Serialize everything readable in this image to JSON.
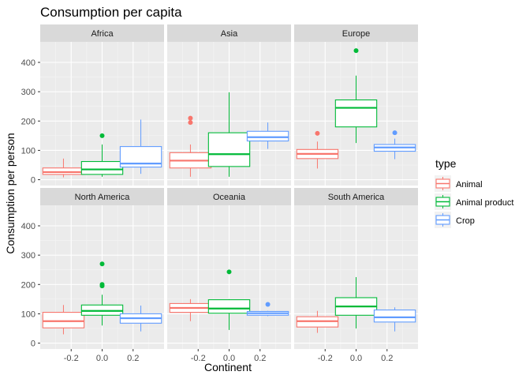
{
  "chart_data": {
    "type": "boxplot",
    "title": "Consumption per capita",
    "xlabel": "Continent",
    "ylabel": "Consumption per person",
    "xlim": [
      -0.4,
      0.4
    ],
    "ylim": [
      -20,
      470
    ],
    "x_ticks": [
      -0.2,
      0.0,
      0.2
    ],
    "x_tick_labels": [
      "-0.2",
      "0.0",
      "0.2"
    ],
    "y_ticks": [
      0,
      100,
      200,
      300,
      400
    ],
    "y_tick_labels": [
      "0",
      "100",
      "200",
      "300",
      "400"
    ],
    "legend": {
      "title": "type",
      "entries": [
        {
          "label": "Animal",
          "color": "#F8766D"
        },
        {
          "label": "Animal product",
          "color": "#00BA38"
        },
        {
          "label": "Crop",
          "color": "#619CFF"
        }
      ]
    },
    "panels": [
      {
        "facet": "Africa",
        "boxes": [
          {
            "type": "Animal",
            "x": -0.25,
            "whisker_low": 8,
            "q1": 18,
            "median": 26,
            "q3": 40,
            "whisker_high": 72,
            "outliers": []
          },
          {
            "type": "Animal product",
            "x": 0.0,
            "whisker_low": 10,
            "q1": 18,
            "median": 35,
            "q3": 62,
            "whisker_high": 120,
            "outliers": [
              150
            ]
          },
          {
            "type": "Crop",
            "x": 0.25,
            "whisker_low": 20,
            "q1": 43,
            "median": 55,
            "q3": 113,
            "whisker_high": 205,
            "outliers": []
          }
        ]
      },
      {
        "facet": "Asia",
        "boxes": [
          {
            "type": "Animal",
            "x": -0.25,
            "whisker_low": 10,
            "q1": 40,
            "median": 65,
            "q3": 92,
            "whisker_high": 120,
            "outliers": [
              195,
              210
            ]
          },
          {
            "type": "Animal product",
            "x": 0.0,
            "whisker_low": 10,
            "q1": 45,
            "median": 87,
            "q3": 160,
            "whisker_high": 298,
            "outliers": []
          },
          {
            "type": "Crop",
            "x": 0.25,
            "whisker_low": 105,
            "q1": 132,
            "median": 145,
            "q3": 165,
            "whisker_high": 195,
            "outliers": []
          }
        ]
      },
      {
        "facet": "Europe",
        "boxes": [
          {
            "type": "Animal",
            "x": -0.25,
            "whisker_low": 38,
            "q1": 72,
            "median": 88,
            "q3": 103,
            "whisker_high": 130,
            "outliers": [
              158
            ]
          },
          {
            "type": "Animal product",
            "x": 0.0,
            "whisker_low": 125,
            "q1": 180,
            "median": 245,
            "q3": 272,
            "whisker_high": 355,
            "outliers": [
              440
            ]
          },
          {
            "type": "Crop",
            "x": 0.25,
            "whisker_low": 70,
            "q1": 97,
            "median": 110,
            "q3": 120,
            "whisker_high": 140,
            "outliers": [
              160
            ]
          }
        ]
      },
      {
        "facet": "North America",
        "boxes": [
          {
            "type": "Animal",
            "x": -0.25,
            "whisker_low": 30,
            "q1": 52,
            "median": 75,
            "q3": 105,
            "whisker_high": 130,
            "outliers": []
          },
          {
            "type": "Animal product",
            "x": 0.0,
            "whisker_low": 60,
            "q1": 95,
            "median": 110,
            "q3": 130,
            "whisker_high": 165,
            "outliers": [
              195,
              200,
              270
            ]
          },
          {
            "type": "Crop",
            "x": 0.25,
            "whisker_low": 40,
            "q1": 68,
            "median": 85,
            "q3": 100,
            "whisker_high": 128,
            "outliers": []
          }
        ]
      },
      {
        "facet": "Oceania",
        "boxes": [
          {
            "type": "Animal",
            "x": -0.25,
            "whisker_low": 75,
            "q1": 105,
            "median": 120,
            "q3": 135,
            "whisker_high": 150,
            "outliers": []
          },
          {
            "type": "Animal product",
            "x": 0.0,
            "whisker_low": 45,
            "q1": 102,
            "median": 118,
            "q3": 148,
            "whisker_high": 150,
            "outliers": [
              243
            ]
          },
          {
            "type": "Crop",
            "x": 0.25,
            "whisker_low": 92,
            "q1": 95,
            "median": 102,
            "q3": 108,
            "whisker_high": 110,
            "outliers": [
              132
            ]
          }
        ]
      },
      {
        "facet": "South America",
        "boxes": [
          {
            "type": "Animal",
            "x": -0.25,
            "whisker_low": 35,
            "q1": 55,
            "median": 75,
            "q3": 90,
            "whisker_high": 110,
            "outliers": []
          },
          {
            "type": "Animal product",
            "x": 0.0,
            "whisker_low": 50,
            "q1": 95,
            "median": 125,
            "q3": 155,
            "whisker_high": 225,
            "outliers": []
          },
          {
            "type": "Crop",
            "x": 0.25,
            "whisker_low": 40,
            "q1": 72,
            "median": 88,
            "q3": 113,
            "whisker_high": 122,
            "outliers": []
          }
        ]
      }
    ]
  }
}
